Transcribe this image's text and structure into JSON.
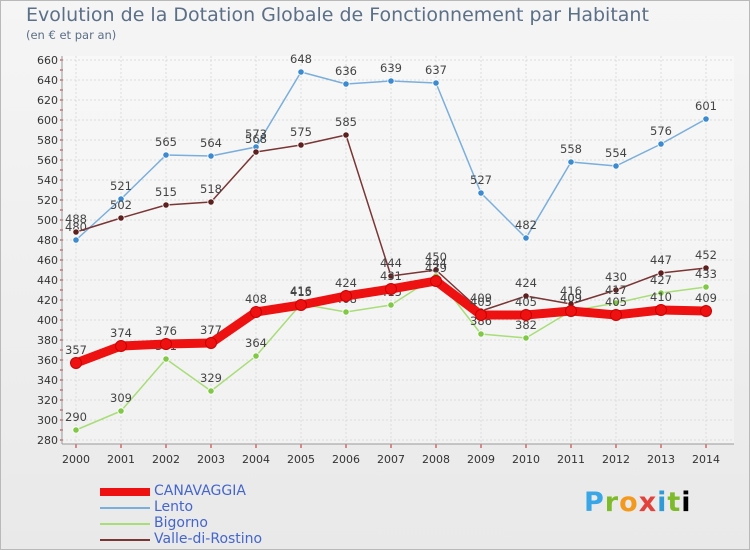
{
  "title": "Evolution de la Dotation Globale de Fonctionnement par Habitant",
  "subtitle": "(en € et par an)",
  "logo": "Proxiti",
  "chart_data": {
    "type": "line",
    "x": [
      2000,
      2001,
      2002,
      2003,
      2004,
      2005,
      2006,
      2007,
      2008,
      2009,
      2010,
      2011,
      2012,
      2013,
      2014
    ],
    "ylim": [
      280,
      660
    ],
    "yticks": [
      280,
      300,
      320,
      340,
      360,
      380,
      400,
      420,
      440,
      460,
      480,
      500,
      520,
      540,
      560,
      580,
      600,
      620,
      640,
      660
    ],
    "grid": true,
    "legend": "bottom-left",
    "series": [
      {
        "name": "Lento",
        "color": "#7aaedc",
        "marker": "#3c8ad0",
        "values": [
          480,
          521,
          565,
          564,
          573,
          648,
          636,
          639,
          637,
          527,
          482,
          558,
          554,
          576,
          601
        ]
      },
      {
        "name": "Valle-di-Rostino",
        "color": "#7a3535",
        "marker": "#5e1f1f",
        "values": [
          488,
          502,
          515,
          518,
          568,
          575,
          585,
          444,
          450,
          409,
          424,
          416,
          430,
          447,
          452
        ]
      },
      {
        "name": "Bigorno",
        "color": "#a8dd78",
        "marker": "#80c846",
        "values": [
          290,
          309,
          361,
          329,
          364,
          416,
          408,
          415,
          444,
          386,
          382,
          409,
          417,
          427,
          433
        ]
      },
      {
        "name": "CANAVAGGIA",
        "color": "#ee1111",
        "marker": "#ee1111",
        "values": [
          357,
          374,
          376,
          377,
          408,
          415,
          424,
          431,
          439,
          405,
          405,
          409,
          405,
          410,
          409
        ]
      }
    ]
  }
}
